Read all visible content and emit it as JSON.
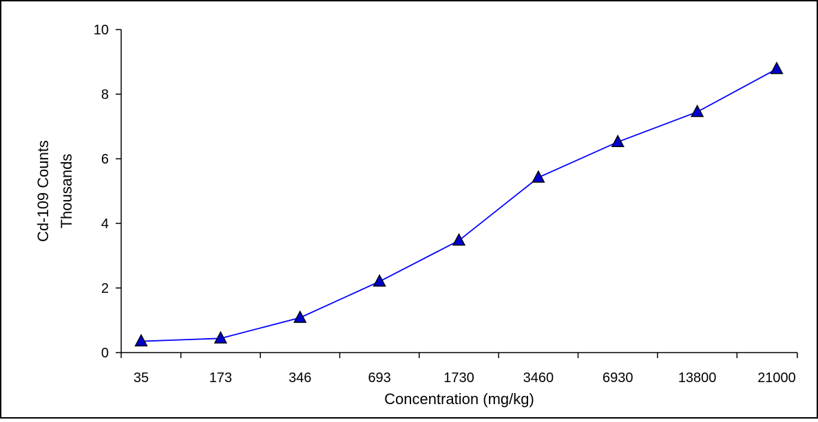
{
  "chart_data": {
    "type": "line",
    "ylabel_lines": [
      "Cd-109 Counts",
      "Thousands"
    ],
    "xlabel": "Concentration (mg/kg)",
    "categories": [
      "35",
      "173",
      "346",
      "693",
      "1730",
      "3460",
      "6930",
      "13800",
      "21000"
    ],
    "y_ticks": [
      "0",
      "2",
      "4",
      "6",
      "8",
      "10"
    ],
    "ylim": [
      0,
      10
    ],
    "grid": false,
    "legend": "none",
    "series": [
      {
        "values": [
          0.35,
          0.44,
          1.08,
          2.2,
          3.47,
          5.42,
          6.52,
          7.45,
          8.78
        ],
        "line_color": "#0000ff",
        "marker": "triangle",
        "marker_fill": "#0000cc",
        "marker_edge": "#000000"
      }
    ]
  }
}
